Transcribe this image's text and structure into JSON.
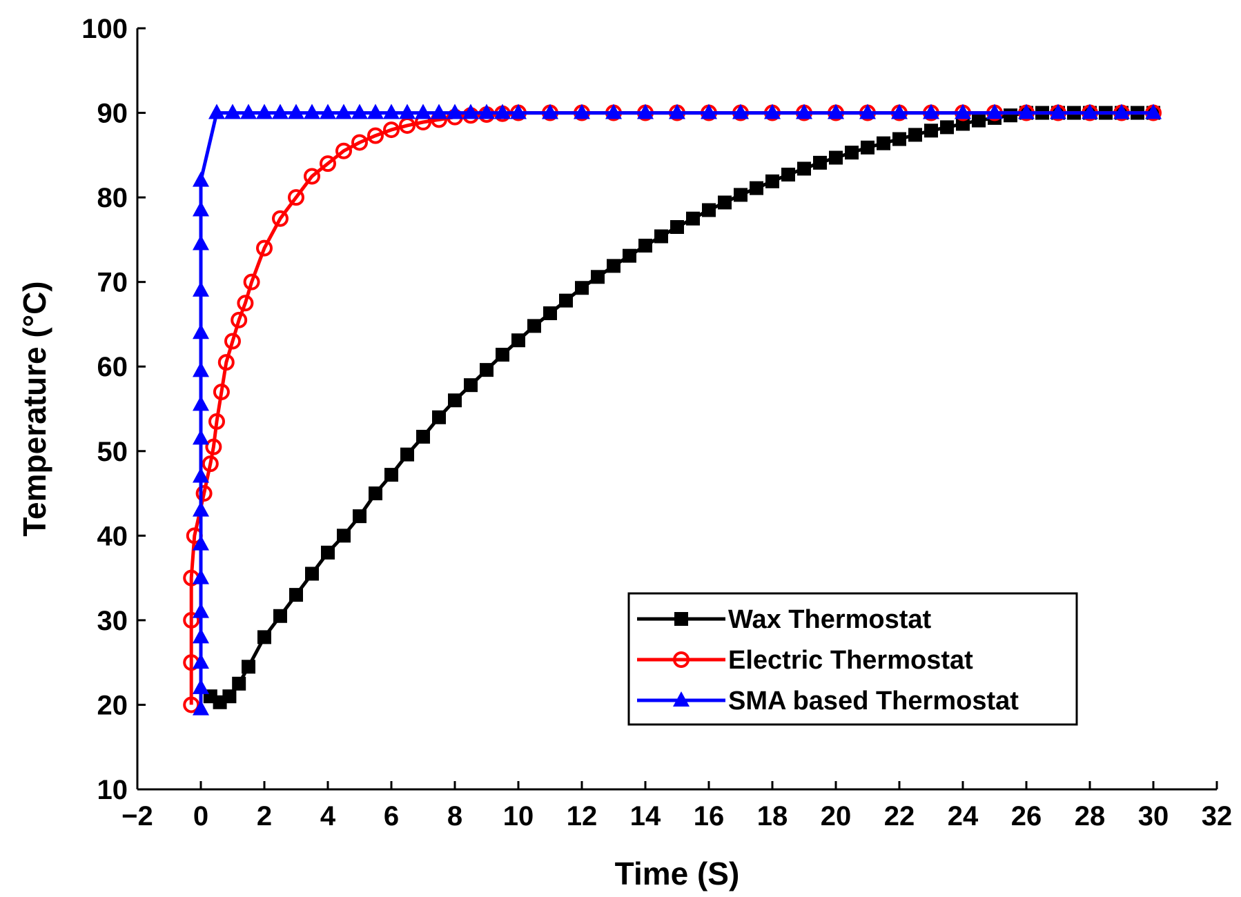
{
  "chart_data": {
    "type": "line",
    "title": "",
    "xlabel": "Time (S)",
    "ylabel": "Temperature (°C)",
    "xlim": [
      -2,
      32
    ],
    "ylim": [
      10,
      100
    ],
    "xticks": [
      -2,
      0,
      2,
      4,
      6,
      8,
      10,
      12,
      14,
      16,
      18,
      20,
      22,
      24,
      26,
      28,
      30,
      32
    ],
    "xtick_labels": [
      "−2",
      "0",
      "2",
      "4",
      "6",
      "8",
      "10",
      "12",
      "14",
      "16",
      "18",
      "20",
      "22",
      "24",
      "26",
      "28",
      "30",
      "32"
    ],
    "yticks": [
      10,
      20,
      30,
      40,
      50,
      60,
      70,
      80,
      90,
      100
    ],
    "ytick_labels": [
      "10",
      "20",
      "30",
      "40",
      "50",
      "60",
      "70",
      "80",
      "90",
      "100"
    ],
    "grid": false,
    "legend_position": "bottom-right",
    "series": [
      {
        "name": "Wax Thermostat",
        "color": "#000000",
        "marker": "filled-square",
        "x": [
          0.3,
          0.6,
          0.9,
          1.2,
          1.5,
          2.0,
          2.5,
          3.0,
          3.5,
          4.0,
          4.5,
          5.0,
          5.5,
          6.0,
          6.5,
          7.0,
          7.5,
          8.0,
          8.5,
          9.0,
          9.5,
          10.0,
          10.5,
          11.0,
          11.5,
          12.0,
          12.5,
          13.0,
          13.5,
          14.0,
          14.5,
          15.0,
          15.5,
          16.0,
          16.5,
          17.0,
          17.5,
          18.0,
          18.5,
          19.0,
          19.5,
          20.0,
          20.5,
          21.0,
          21.5,
          22.0,
          22.5,
          23.0,
          23.5,
          24.0,
          24.5,
          25.0,
          25.5,
          26.0,
          26.5,
          27.0,
          27.5,
          28.0,
          28.5,
          29.0,
          29.5,
          30.0
        ],
        "values": [
          21,
          20.3,
          21,
          22.5,
          24.5,
          28,
          30.5,
          33,
          35.5,
          38,
          40,
          42.3,
          45,
          47.2,
          49.6,
          51.7,
          54,
          56,
          57.8,
          59.6,
          61.4,
          63.1,
          64.8,
          66.3,
          67.8,
          69.3,
          70.6,
          71.9,
          73.1,
          74.3,
          75.4,
          76.5,
          77.5,
          78.5,
          79.4,
          80.3,
          81.1,
          81.9,
          82.7,
          83.4,
          84.1,
          84.7,
          85.3,
          85.9,
          86.4,
          86.9,
          87.4,
          87.9,
          88.3,
          88.7,
          89.1,
          89.4,
          89.7,
          90,
          90,
          90,
          90,
          90,
          90,
          90,
          90,
          90
        ]
      },
      {
        "name": "Electric Thermostat",
        "color": "#ff0000",
        "marker": "open-circle",
        "x": [
          -0.3,
          -0.3,
          -0.3,
          -0.3,
          -0.2,
          0.1,
          0.3,
          0.4,
          0.5,
          0.65,
          0.8,
          1.0,
          1.2,
          1.4,
          1.6,
          2.0,
          2.5,
          3.0,
          3.5,
          4.0,
          4.5,
          5.0,
          5.5,
          6.0,
          6.5,
          7.0,
          7.5,
          8.0,
          8.5,
          9.0,
          9.5,
          10.0,
          11.0,
          12.0,
          13.0,
          14.0,
          15.0,
          16.0,
          17.0,
          18.0,
          19.0,
          20.0,
          21.0,
          22.0,
          23.0,
          24.0,
          25.0,
          26.0,
          27.0,
          28.0,
          29.0,
          30.0
        ],
        "values": [
          20,
          25,
          30,
          35,
          40,
          45,
          48.5,
          50.5,
          53.5,
          57,
          60.5,
          63,
          65.5,
          67.5,
          70,
          74,
          77.5,
          80,
          82.5,
          84,
          85.5,
          86.5,
          87.3,
          88,
          88.5,
          88.9,
          89.2,
          89.5,
          89.7,
          89.8,
          89.9,
          90,
          90,
          90,
          90,
          90,
          90,
          90,
          90,
          90,
          90,
          90,
          90,
          90,
          90,
          90,
          90,
          90,
          90,
          90,
          90,
          90
        ]
      },
      {
        "name": "SMA based Thermostat",
        "color": "#0000ff",
        "marker": "filled-triangle",
        "x": [
          0,
          0,
          0,
          0,
          0,
          0,
          0,
          0,
          0,
          0,
          0,
          0,
          0,
          0,
          0,
          0,
          0,
          0.5,
          1.0,
          1.5,
          2.0,
          2.5,
          3.0,
          3.5,
          4.0,
          4.5,
          5.0,
          5.5,
          6.0,
          6.5,
          7.0,
          7.5,
          8.0,
          8.5,
          9.0,
          9.5,
          10.0,
          11.0,
          12.0,
          13.0,
          14.0,
          15.0,
          16.0,
          17.0,
          18.0,
          19.0,
          20.0,
          21.0,
          22.0,
          23.0,
          24.0,
          25.0,
          26.0,
          27.0,
          28.0,
          29.0,
          30.0
        ],
        "values": [
          19.5,
          22,
          25,
          28,
          31,
          35,
          39,
          43,
          47,
          51.5,
          55.5,
          59.5,
          64,
          69,
          74.5,
          78.5,
          82,
          90,
          90,
          90,
          90,
          90,
          90,
          90,
          90,
          90,
          90,
          90,
          90,
          90,
          90,
          90,
          90,
          90,
          90,
          90,
          90,
          90,
          90,
          90,
          90,
          90,
          90,
          90,
          90,
          90,
          90,
          90,
          90,
          90,
          90,
          90,
          90,
          90,
          90,
          90,
          90
        ]
      }
    ]
  }
}
